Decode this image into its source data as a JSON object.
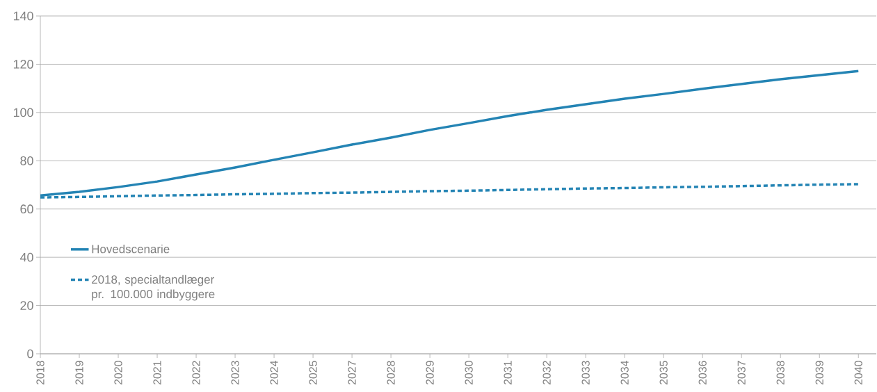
{
  "chart_data": {
    "type": "line",
    "categories": [
      "2018",
      "2019",
      "2020",
      "2021",
      "2022",
      "2023",
      "2024",
      "2025",
      "2027",
      "2028",
      "2029",
      "2030",
      "2031",
      "2032",
      "2033",
      "2034",
      "2035",
      "2036",
      "2037",
      "2038",
      "2039",
      "2040"
    ],
    "series": [
      {
        "name": "Hovedscenarie",
        "color": "#2484b4",
        "line_style": "solid",
        "values": [
          65.6,
          67.1,
          69.1,
          71.4,
          74.3,
          77.2,
          80.4,
          83.5,
          86.7,
          89.6,
          92.8,
          95.6,
          98.5,
          101.1,
          103.4,
          105.7,
          107.7,
          109.8,
          111.8,
          113.8,
          115.5,
          117.2
        ]
      },
      {
        "name": "2018, specialtandlæger pr. 100.000 indbyggere",
        "color": "#2484b4",
        "line_style": "dashed",
        "values": [
          64.8,
          65.0,
          65.3,
          65.6,
          65.8,
          66.1,
          66.3,
          66.6,
          66.8,
          67.1,
          67.4,
          67.6,
          67.9,
          68.2,
          68.5,
          68.7,
          69.0,
          69.2,
          69.5,
          69.8,
          70.1,
          70.3
        ]
      }
    ],
    "ylim": [
      0,
      140
    ],
    "yticks": [
      0,
      20,
      40,
      60,
      80,
      100,
      120,
      140
    ],
    "grid": "y",
    "legend": "bottom left",
    "marker": "none"
  }
}
